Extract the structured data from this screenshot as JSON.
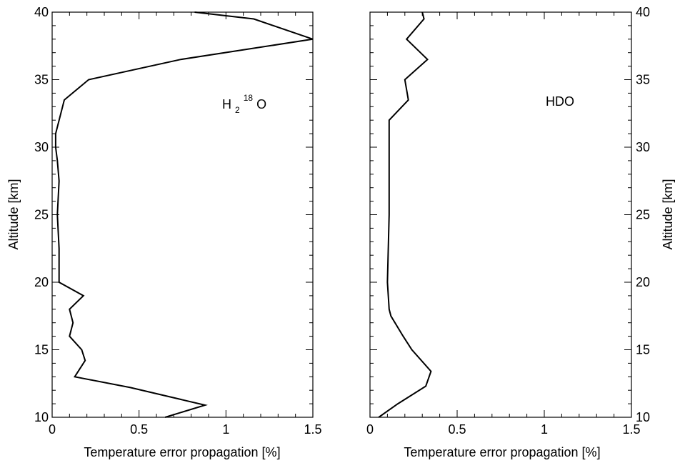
{
  "chart_data": [
    {
      "type": "line",
      "xlabel": "Temperature error propagation [%]",
      "ylabel": "Altitude [km]",
      "xlim": [
        0,
        1.5
      ],
      "ylim": [
        10,
        40
      ],
      "x_ticks": [
        "0",
        "0.5",
        "1",
        "1.5"
      ],
      "y_ticks": [
        "10",
        "15",
        "20",
        "25",
        "30",
        "35",
        "40"
      ],
      "y_axis_side": "left",
      "annotation": {
        "base": "H",
        "sub": "2",
        "sup": "18",
        "tail": "O"
      },
      "series": [
        {
          "x": [
            0.65,
            0.88,
            0.45,
            0.13,
            0.19,
            0.17,
            0.1,
            0.12,
            0.1,
            0.18,
            0.04,
            0.04,
            0.03,
            0.04,
            0.03,
            0.02,
            0.02,
            0.07,
            0.21,
            0.74,
            1.5,
            1.16,
            0.82
          ],
          "y": [
            10,
            10.9,
            12.2,
            13.0,
            14.2,
            15.0,
            16.0,
            17.0,
            18.0,
            19.0,
            20.0,
            22.5,
            25.0,
            27.5,
            29.0,
            30.0,
            31.0,
            33.5,
            35.0,
            36.5,
            38.0,
            39.5,
            40.0
          ]
        }
      ]
    },
    {
      "type": "line",
      "xlabel": "Temperature error propagation [%]",
      "ylabel": "Altitude [km]",
      "xlim": [
        0,
        1.5
      ],
      "ylim": [
        10,
        40
      ],
      "x_ticks": [
        "0",
        "0.5",
        "1",
        "1.5"
      ],
      "y_ticks": [
        "10",
        "15",
        "20",
        "25",
        "30",
        "35",
        "40"
      ],
      "y_axis_side": "right",
      "annotation": {
        "text": "HDO"
      },
      "series": [
        {
          "x": [
            0.05,
            0.16,
            0.32,
            0.35,
            0.24,
            0.19,
            0.12,
            0.11,
            0.1,
            0.11,
            0.11,
            0.11,
            0.22,
            0.2,
            0.33,
            0.21,
            0.31,
            0.3
          ],
          "y": [
            10,
            11.0,
            12.3,
            13.4,
            15.0,
            16.0,
            17.5,
            18.0,
            20.0,
            25.0,
            30.0,
            32.0,
            33.5,
            35.0,
            36.5,
            38.0,
            39.5,
            40.0
          ]
        }
      ]
    }
  ]
}
